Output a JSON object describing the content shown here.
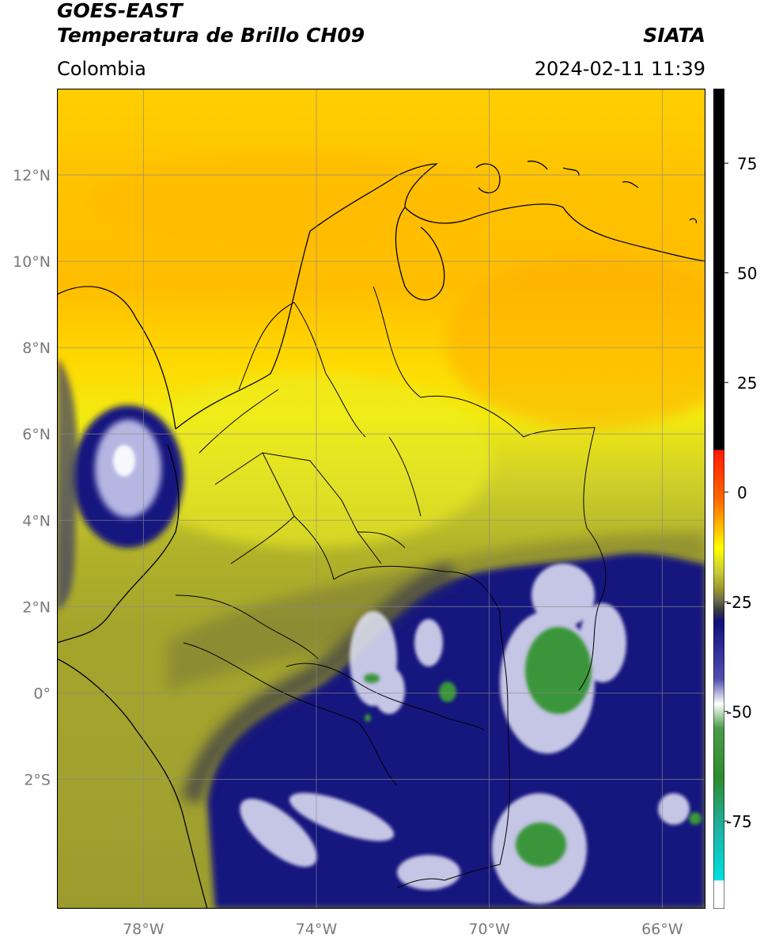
{
  "header": {
    "satellite": "GOES-EAST",
    "product": "Temperatura de Brillo CH09",
    "region": "Colombia",
    "organization": "SIATA",
    "datetime": "2024-02-11 11:39"
  },
  "map": {
    "lon_range": [
      -80,
      -65
    ],
    "lat_range": [
      -5,
      14
    ],
    "lon_ticks": [
      {
        "value": -78,
        "label": "78°W"
      },
      {
        "value": -74,
        "label": "74°W"
      },
      {
        "value": -70,
        "label": "70°W"
      },
      {
        "value": -66,
        "label": "66°W"
      }
    ],
    "lat_ticks": [
      {
        "value": 12,
        "label": "12°N"
      },
      {
        "value": 10,
        "label": "10°N"
      },
      {
        "value": 8,
        "label": "8°N"
      },
      {
        "value": 6,
        "label": "6°N"
      },
      {
        "value": 4,
        "label": "4°N"
      },
      {
        "value": 2,
        "label": "2°N"
      },
      {
        "value": 0,
        "label": "0°"
      },
      {
        "value": -2,
        "label": "2°S"
      }
    ],
    "gridlines": true
  },
  "colorbar": {
    "range": [
      -95,
      92
    ],
    "ticks": [
      {
        "value": 75,
        "label": "75"
      },
      {
        "value": 50,
        "label": "50"
      },
      {
        "value": 25,
        "label": "25"
      },
      {
        "value": 0,
        "label": "0"
      },
      {
        "value": -25,
        "label": "-25"
      },
      {
        "value": -50,
        "label": "-50"
      },
      {
        "value": -75,
        "label": "-75"
      }
    ],
    "colors": {
      "black": "#000000",
      "red": "#ff1a00",
      "orange": "#ff9900",
      "yellow": "#ffff00",
      "olive": "#9a9a2a",
      "dark_gray": "#3c3c3c",
      "navy": "#10107e",
      "white": "#ffffff",
      "green": "#2e8b2e",
      "cyan": "#00e0e0"
    }
  }
}
